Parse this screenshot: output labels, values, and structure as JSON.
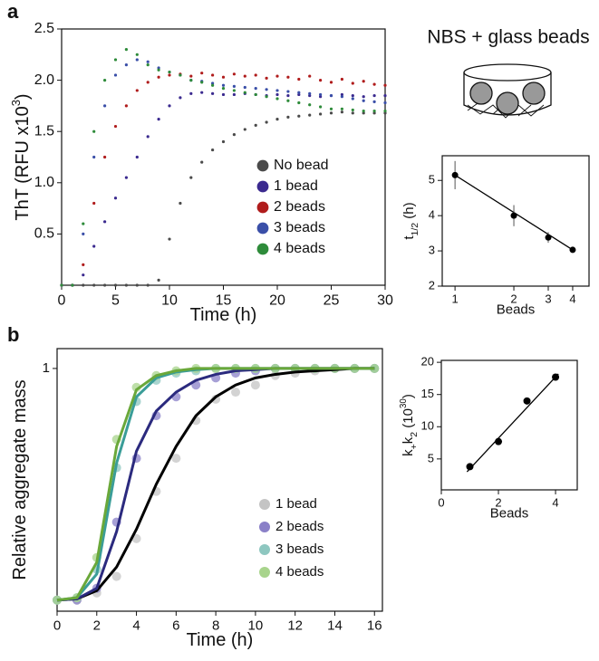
{
  "panel_labels": [
    "a",
    "b"
  ],
  "schematic_title": "NBS + glass beads",
  "chart_data": [
    {
      "type": "scatter",
      "x_label": [
        {
          "text": "Time (h)"
        }
      ],
      "y_label": [
        {
          "text": "ThT (RFU x10"
        },
        {
          "text": "3",
          "shift": "super"
        },
        {
          "text": ")"
        }
      ],
      "xlim": [
        0,
        30
      ],
      "xticks": [
        0,
        5,
        10,
        15,
        20,
        25,
        30
      ],
      "ylim": [
        0,
        2.5
      ],
      "yticks": [
        0.5,
        {
          "value": 1,
          "label": "1.0"
        },
        1.5,
        {
          "value": 2,
          "label": "2.0"
        },
        2.5
      ],
      "legend": "center-right",
      "x": [
        0,
        1,
        2,
        3,
        4,
        5,
        6,
        7,
        8,
        9,
        10,
        11,
        12,
        13,
        14,
        15,
        16,
        17,
        18,
        19,
        20,
        21,
        22,
        23,
        24,
        25,
        26,
        27,
        28,
        29,
        30
      ],
      "series": [
        {
          "name": "No bead",
          "color": "#4a4a4a",
          "values": [
            0,
            0,
            0,
            0,
            0,
            0,
            0,
            0,
            0,
            0.05,
            0.45,
            0.8,
            1.05,
            1.2,
            1.32,
            1.4,
            1.47,
            1.52,
            1.56,
            1.59,
            1.62,
            1.64,
            1.65,
            1.66,
            1.67,
            1.68,
            1.69,
            1.68,
            1.68,
            1.68,
            1.68
          ]
        },
        {
          "name": "1 bead",
          "color": "#3b2a8f",
          "values": [
            0,
            0,
            0.1,
            0.38,
            0.62,
            0.85,
            1.05,
            1.25,
            1.45,
            1.62,
            1.75,
            1.83,
            1.87,
            1.88,
            1.87,
            1.86,
            1.86,
            1.87,
            1.86,
            1.85,
            1.86,
            1.85,
            1.86,
            1.85,
            1.84,
            1.85,
            1.86,
            1.85,
            1.84,
            1.85,
            1.85
          ]
        },
        {
          "name": "2 beads",
          "color": "#b01c1c",
          "values": [
            0,
            0,
            0.2,
            0.8,
            1.25,
            1.55,
            1.75,
            1.9,
            1.98,
            2.03,
            2.05,
            2.06,
            2.04,
            2.07,
            2.05,
            2.03,
            2.06,
            2.04,
            2.05,
            2.02,
            2.04,
            2.03,
            2.01,
            2.04,
            2.0,
            1.98,
            2.01,
            1.97,
            1.99,
            1.96,
            1.95
          ]
        },
        {
          "name": "3 beads",
          "color": "#3a4fa8",
          "values": [
            0,
            0,
            0.5,
            1.25,
            1.75,
            2.05,
            2.15,
            2.2,
            2.18,
            2.12,
            2.08,
            2.05,
            2.0,
            1.99,
            1.97,
            1.95,
            1.94,
            1.93,
            1.92,
            1.91,
            1.9,
            1.89,
            1.88,
            1.87,
            1.86,
            1.85,
            1.84,
            1.82,
            1.8,
            1.79,
            1.78
          ]
        },
        {
          "name": "4 beads",
          "color": "#2e8b3a",
          "values": [
            0,
            0,
            0.6,
            1.5,
            2.0,
            2.2,
            2.3,
            2.25,
            2.15,
            2.1,
            2.08,
            2.05,
            2.0,
            1.98,
            1.95,
            1.92,
            1.9,
            1.88,
            1.86,
            1.84,
            1.82,
            1.8,
            1.78,
            1.76,
            1.74,
            1.72,
            1.72,
            1.71,
            1.7,
            1.7,
            1.7
          ]
        }
      ]
    },
    {
      "type": "scatter",
      "x_label": [
        {
          "text": "Beads"
        }
      ],
      "y_label": [
        {
          "text": "t"
        },
        {
          "text": "1/2",
          "shift": "sub"
        },
        {
          "text": " (h)"
        }
      ],
      "xscale": "log",
      "xlim": [
        0.86,
        4.85
      ],
      "xticks": [
        1,
        2,
        3,
        4
      ],
      "ylim": [
        2,
        5.7
      ],
      "yticks": [
        2,
        3,
        4,
        5
      ],
      "x": [
        1,
        2,
        3,
        4
      ],
      "series": [
        {
          "color": "#000000",
          "values": [
            5.15,
            4.0,
            3.38,
            3.03
          ],
          "errors": [
            0.4,
            0.3,
            0.15,
            0.05
          ]
        }
      ],
      "fit": {
        "color": "#000000",
        "x": [
          1,
          4
        ],
        "values": [
          5.15,
          3.03
        ]
      }
    },
    {
      "type": "scatter",
      "x_label": [
        {
          "text": "Time (h)"
        }
      ],
      "y_label": [
        {
          "text": "Relative aggregate mass"
        }
      ],
      "xlim": [
        0,
        16.4
      ],
      "xticks": [
        0,
        2,
        4,
        6,
        8,
        10,
        12,
        14,
        16
      ],
      "ylim": [
        -0.027,
        1.084
      ],
      "yticks": [
        1
      ],
      "legend": "lower-right",
      "x": [
        0,
        1,
        2,
        3,
        4,
        5,
        6,
        7,
        8,
        9,
        10,
        11,
        12,
        13,
        14,
        15,
        16
      ],
      "series": [
        {
          "name": "1 bead",
          "color": "#c4c4c4",
          "values": [
            0.02,
            0.02,
            0.05,
            0.12,
            0.28,
            0.48,
            0.62,
            0.78,
            0.87,
            0.9,
            0.93,
            0.97,
            0.98,
            0.99,
            1.0,
            1.0,
            1.0
          ]
        },
        {
          "name": "2 beads",
          "color": "#8a80c8",
          "values": [
            0.02,
            0.02,
            0.07,
            0.35,
            0.62,
            0.8,
            0.88,
            0.93,
            0.96,
            0.98,
            0.99,
            1.0,
            1.0,
            1.0,
            1.0,
            1.0,
            1.0
          ]
        },
        {
          "name": "3 beads",
          "color": "#8ec7c0",
          "values": [
            0.02,
            0.03,
            0.15,
            0.58,
            0.86,
            0.95,
            0.98,
            0.99,
            1.0,
            1.0,
            1.0,
            1.0,
            1.0,
            1.0,
            1.0,
            1.0,
            1.0
          ]
        },
        {
          "name": "4 beads",
          "color": "#a8d48c",
          "values": [
            0.02,
            0.03,
            0.2,
            0.7,
            0.92,
            0.97,
            0.99,
            1.0,
            1.0,
            1.0,
            1.0,
            1.0,
            1.0,
            1.0,
            1.0,
            1.0,
            1.0
          ]
        },
        {
          "mode": "line",
          "color": "#000000",
          "values": [
            0.02,
            0.025,
            0.06,
            0.16,
            0.32,
            0.51,
            0.67,
            0.8,
            0.88,
            0.93,
            0.96,
            0.975,
            0.985,
            0.99,
            0.995,
            1.0,
            1.0
          ]
        },
        {
          "mode": "line",
          "color": "#2b2a7e",
          "values": [
            0.02,
            0.025,
            0.07,
            0.31,
            0.65,
            0.82,
            0.9,
            0.95,
            0.975,
            0.99,
            0.995,
            1.0,
            1.0,
            1.0,
            1.0,
            1.0,
            1.0
          ]
        },
        {
          "mode": "line",
          "color": "#3a9d98",
          "values": [
            0.02,
            0.03,
            0.13,
            0.6,
            0.88,
            0.96,
            0.985,
            0.995,
            1.0,
            1.0,
            1.0,
            1.0,
            1.0,
            1.0,
            1.0,
            1.0,
            1.0
          ]
        },
        {
          "mode": "line",
          "color": "#6aa83a",
          "values": [
            0.02,
            0.03,
            0.18,
            0.67,
            0.91,
            0.97,
            0.99,
            1.0,
            1.0,
            1.0,
            1.0,
            1.0,
            1.0,
            1.0,
            1.0,
            1.0,
            1.0
          ]
        }
      ]
    },
    {
      "type": "scatter",
      "x_label": [
        {
          "text": "Beads"
        }
      ],
      "y_label": [
        {
          "text": "k"
        },
        {
          "text": "+",
          "shift": "sub"
        },
        {
          "text": "k"
        },
        {
          "text": "2",
          "shift": "sub"
        },
        {
          "text": " (10"
        },
        {
          "text": "30",
          "shift": "super"
        },
        {
          "text": ")"
        }
      ],
      "xlim": [
        0,
        4.76
      ],
      "xticks": [
        0,
        2,
        4
      ],
      "ylim": [
        0.2,
        20.3
      ],
      "yticks": [
        5,
        10,
        15,
        20
      ],
      "x": [
        1,
        2,
        3,
        4
      ],
      "series": [
        {
          "color": "#000000",
          "values": [
            3.8,
            7.7,
            14.0,
            17.7
          ]
        }
      ],
      "fit": {
        "color": "#000000",
        "x": [
          0.9,
          4.1
        ],
        "values": [
          3.0,
          18.2
        ]
      }
    }
  ]
}
